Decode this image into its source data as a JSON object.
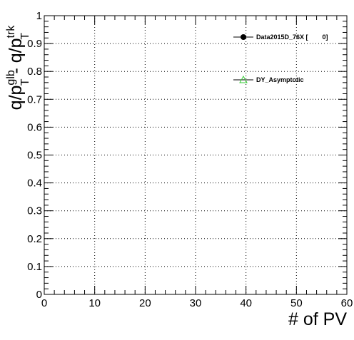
{
  "chart_data": {
    "type": "scatter",
    "title": "",
    "xlabel": "# of PV",
    "ylabel_parts": {
      "left": "q/p",
      "left_sup": "glb",
      "left_sub": "T",
      "minus": " - ",
      "right": "q/p",
      "right_sup": "trk",
      "right_sub": "T"
    },
    "xlim": [
      0,
      60
    ],
    "ylim": [
      0,
      1
    ],
    "x_ticks": [
      "0",
      "10",
      "20",
      "30",
      "40",
      "50",
      "60"
    ],
    "y_ticks": [
      "0",
      "0.1",
      "0.2",
      "0.3",
      "0.4",
      "0.5",
      "0.6",
      "0.7",
      "0.8",
      "0.9",
      "1"
    ],
    "grid": true,
    "legend_position": "top-right",
    "series": [
      {
        "name": "Data2015D_76X [        0]",
        "marker": "filled-circle",
        "color": "#000000",
        "values": []
      },
      {
        "name": "DY_Asymptotic",
        "marker": "open-triangle",
        "color": "#33cc33",
        "values": []
      }
    ]
  }
}
